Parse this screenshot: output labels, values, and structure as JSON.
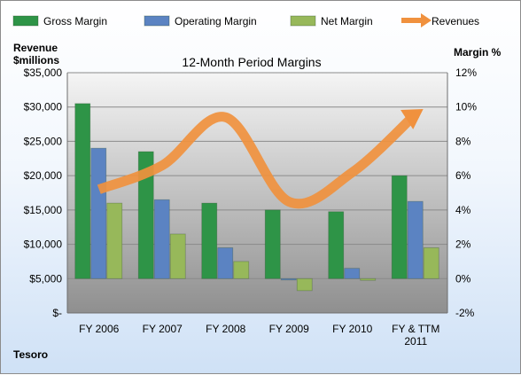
{
  "chart_data": {
    "type": "bar",
    "title": "12-Month Period Margins",
    "ylabel_left": [
      "Revenue",
      "$millions"
    ],
    "ylabel_right": "Margin %",
    "footer": "Tesoro",
    "categories": [
      "FY 2006",
      "FY 2007",
      "FY 2008",
      "FY 2009",
      "FY 2010",
      "FY & TTM 2011"
    ],
    "y_left": {
      "min": 0,
      "max": 35000,
      "step": 5000,
      "ticks": [
        "$-",
        "$5,000",
        "$10,000",
        "$15,000",
        "$20,000",
        "$25,000",
        "$30,000",
        "$35,000"
      ]
    },
    "y_right": {
      "min": -2,
      "max": 12,
      "step": 2,
      "ticks": [
        "-2%",
        "0%",
        "2%",
        "4%",
        "6%",
        "8%",
        "10%",
        "12%"
      ]
    },
    "series": [
      {
        "name": "Gross Margin",
        "axis": "right",
        "kind": "bar",
        "color": "#2e9447",
        "values": [
          10.2,
          7.4,
          4.4,
          4.0,
          3.9,
          6.0
        ]
      },
      {
        "name": "Operating Margin",
        "axis": "right",
        "kind": "bar",
        "color": "#5b83c2",
        "values": [
          7.6,
          4.6,
          1.8,
          0.0,
          0.6,
          4.5
        ]
      },
      {
        "name": "Net Margin",
        "axis": "right",
        "kind": "bar",
        "color": "#97b85a",
        "values": [
          4.4,
          2.6,
          1.0,
          -0.7,
          -0.1,
          1.8
        ]
      },
      {
        "name": "Revenues",
        "axis": "left",
        "kind": "line",
        "color": "#f0913e",
        "values": [
          18000,
          21500,
          28500,
          16200,
          20500,
          29000
        ]
      }
    ],
    "grid": true,
    "legend_position": "top"
  }
}
